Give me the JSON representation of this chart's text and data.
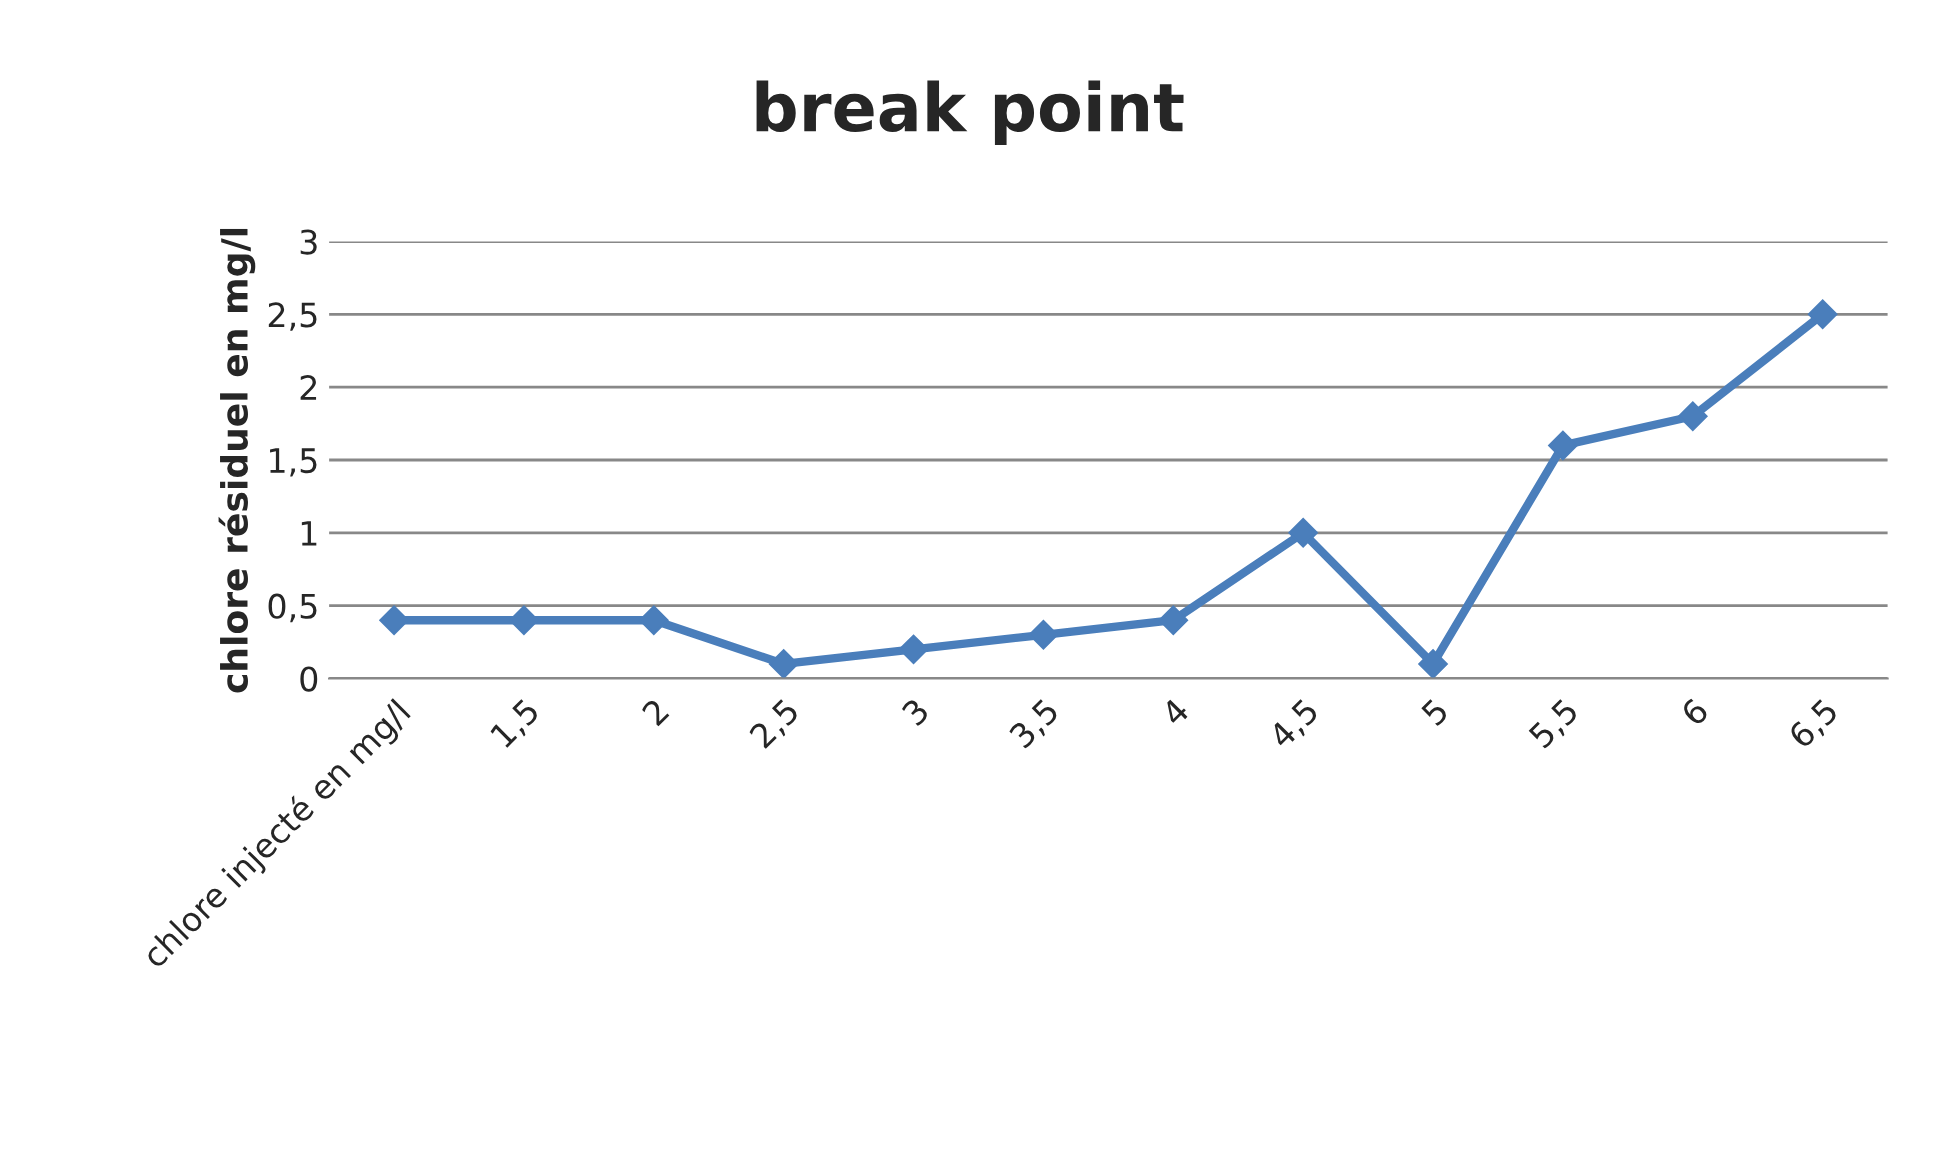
{
  "chart_data": {
    "type": "line",
    "title": "break point",
    "ylabel": "chlore résiduel en mg/l",
    "categories": [
      "chlore injecté en mg/l",
      "1,5",
      "2",
      "2,5",
      "3",
      "3,5",
      "4",
      "4,5",
      "5",
      "5,5",
      "6",
      "6,5"
    ],
    "series": [
      {
        "color": "#4a7ebb",
        "values": [
          0.4,
          0.4,
          0.4,
          0.1,
          0.2,
          0.3,
          0.4,
          1.0,
          0.1,
          1.6,
          1.8,
          2.5
        ]
      }
    ],
    "ylim": [
      0,
      3
    ],
    "yticks": [
      0,
      {
        "value": 0.5,
        "label": "0,5"
      },
      1,
      {
        "value": 1.5,
        "label": "1,5"
      },
      2,
      {
        "value": 2.5,
        "label": "2,5"
      },
      3
    ],
    "grid": "y",
    "marker": "diamond",
    "line_style": "solid",
    "legend": false
  }
}
